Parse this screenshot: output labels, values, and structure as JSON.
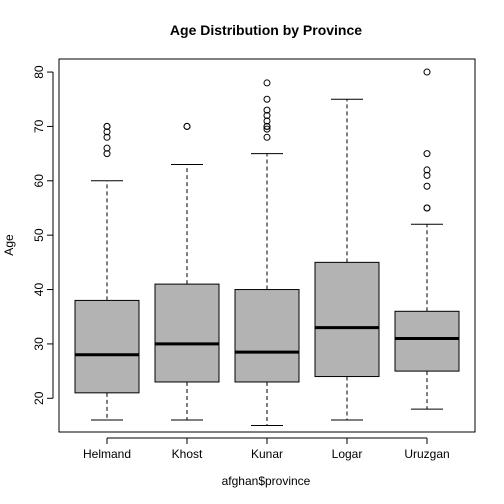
{
  "chart_data": {
    "type": "boxplot",
    "title": "Age Distribution by Province",
    "xlabel": "afghan$province",
    "ylabel": "Age",
    "ylim": [
      13.8,
      82.4
    ],
    "yticks": [
      20,
      30,
      40,
      50,
      60,
      70,
      80
    ],
    "categories": [
      "Helmand",
      "Khost",
      "Kunar",
      "Logar",
      "Uruzgan"
    ],
    "series": [
      {
        "category": "Helmand",
        "whisker_low": 16,
        "q1": 21,
        "median": 28,
        "q3": 38,
        "whisker_high": 60,
        "outliers": [
          65,
          66,
          68,
          69,
          70,
          70
        ]
      },
      {
        "category": "Khost",
        "whisker_low": 16,
        "q1": 23,
        "median": 30,
        "q3": 41,
        "whisker_high": 63,
        "outliers": [
          70,
          70
        ]
      },
      {
        "category": "Kunar",
        "whisker_low": 15,
        "q1": 23,
        "median": 28.5,
        "q3": 40,
        "whisker_high": 65,
        "outliers": [
          68,
          69.5,
          70,
          70,
          71,
          72,
          73,
          75,
          78
        ]
      },
      {
        "category": "Logar",
        "whisker_low": 16,
        "q1": 24,
        "median": 33,
        "q3": 45,
        "whisker_high": 75,
        "outliers": []
      },
      {
        "category": "Uruzgan",
        "whisker_low": 18,
        "q1": 25,
        "median": 31,
        "q3": 36,
        "whisker_high": 52,
        "outliers": [
          55,
          55,
          59,
          61,
          62,
          65,
          80
        ]
      }
    ],
    "colors": {
      "box_fill": "#b3b3b3",
      "stroke": "#000000"
    },
    "grid": false,
    "legend": "none"
  }
}
